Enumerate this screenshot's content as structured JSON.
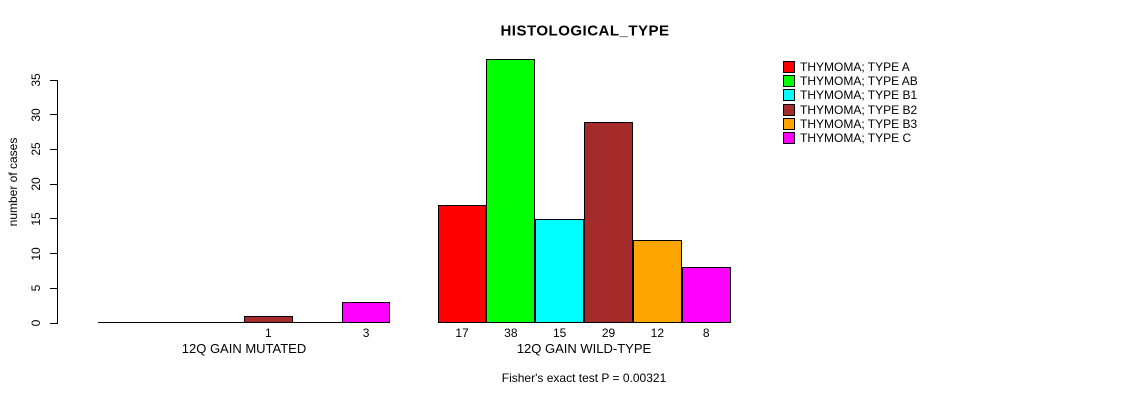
{
  "chart_data": {
    "type": "bar",
    "title": "HISTOLOGICAL_TYPE",
    "ylabel": "number of cases",
    "xlabel": "",
    "yticks": [
      0,
      5,
      10,
      15,
      20,
      25,
      30,
      35
    ],
    "ylim": [
      0,
      38
    ],
    "grid": false,
    "legend_position": "right",
    "series": [
      {
        "name": "THYMOMA; TYPE A",
        "color": "#FF0000"
      },
      {
        "name": "THYMOMA; TYPE AB",
        "color": "#00FF00"
      },
      {
        "name": "THYMOMA; TYPE B1",
        "color": "#00FFFF"
      },
      {
        "name": "THYMOMA; TYPE B2",
        "color": "#A52A2A"
      },
      {
        "name": "THYMOMA; TYPE B3",
        "color": "#FFA500"
      },
      {
        "name": "THYMOMA; TYPE C",
        "color": "#FF00FF"
      }
    ],
    "categories": [
      "12Q GAIN MUTATED",
      "12Q GAIN WILD-TYPE"
    ],
    "groups": [
      {
        "label": "12Q GAIN MUTATED",
        "values": [
          0,
          0,
          0,
          1,
          0,
          3
        ],
        "bar_labels": [
          "",
          "",
          "",
          "1",
          "",
          "3"
        ]
      },
      {
        "label": "12Q GAIN WILD-TYPE",
        "values": [
          17,
          38,
          15,
          29,
          12,
          8
        ],
        "bar_labels": [
          "17",
          "38",
          "15",
          "29",
          "12",
          "8"
        ]
      }
    ],
    "footer": "Fisher's exact test P = 0.00321",
    "axis_color": "#000000",
    "text_color": "#000000"
  }
}
